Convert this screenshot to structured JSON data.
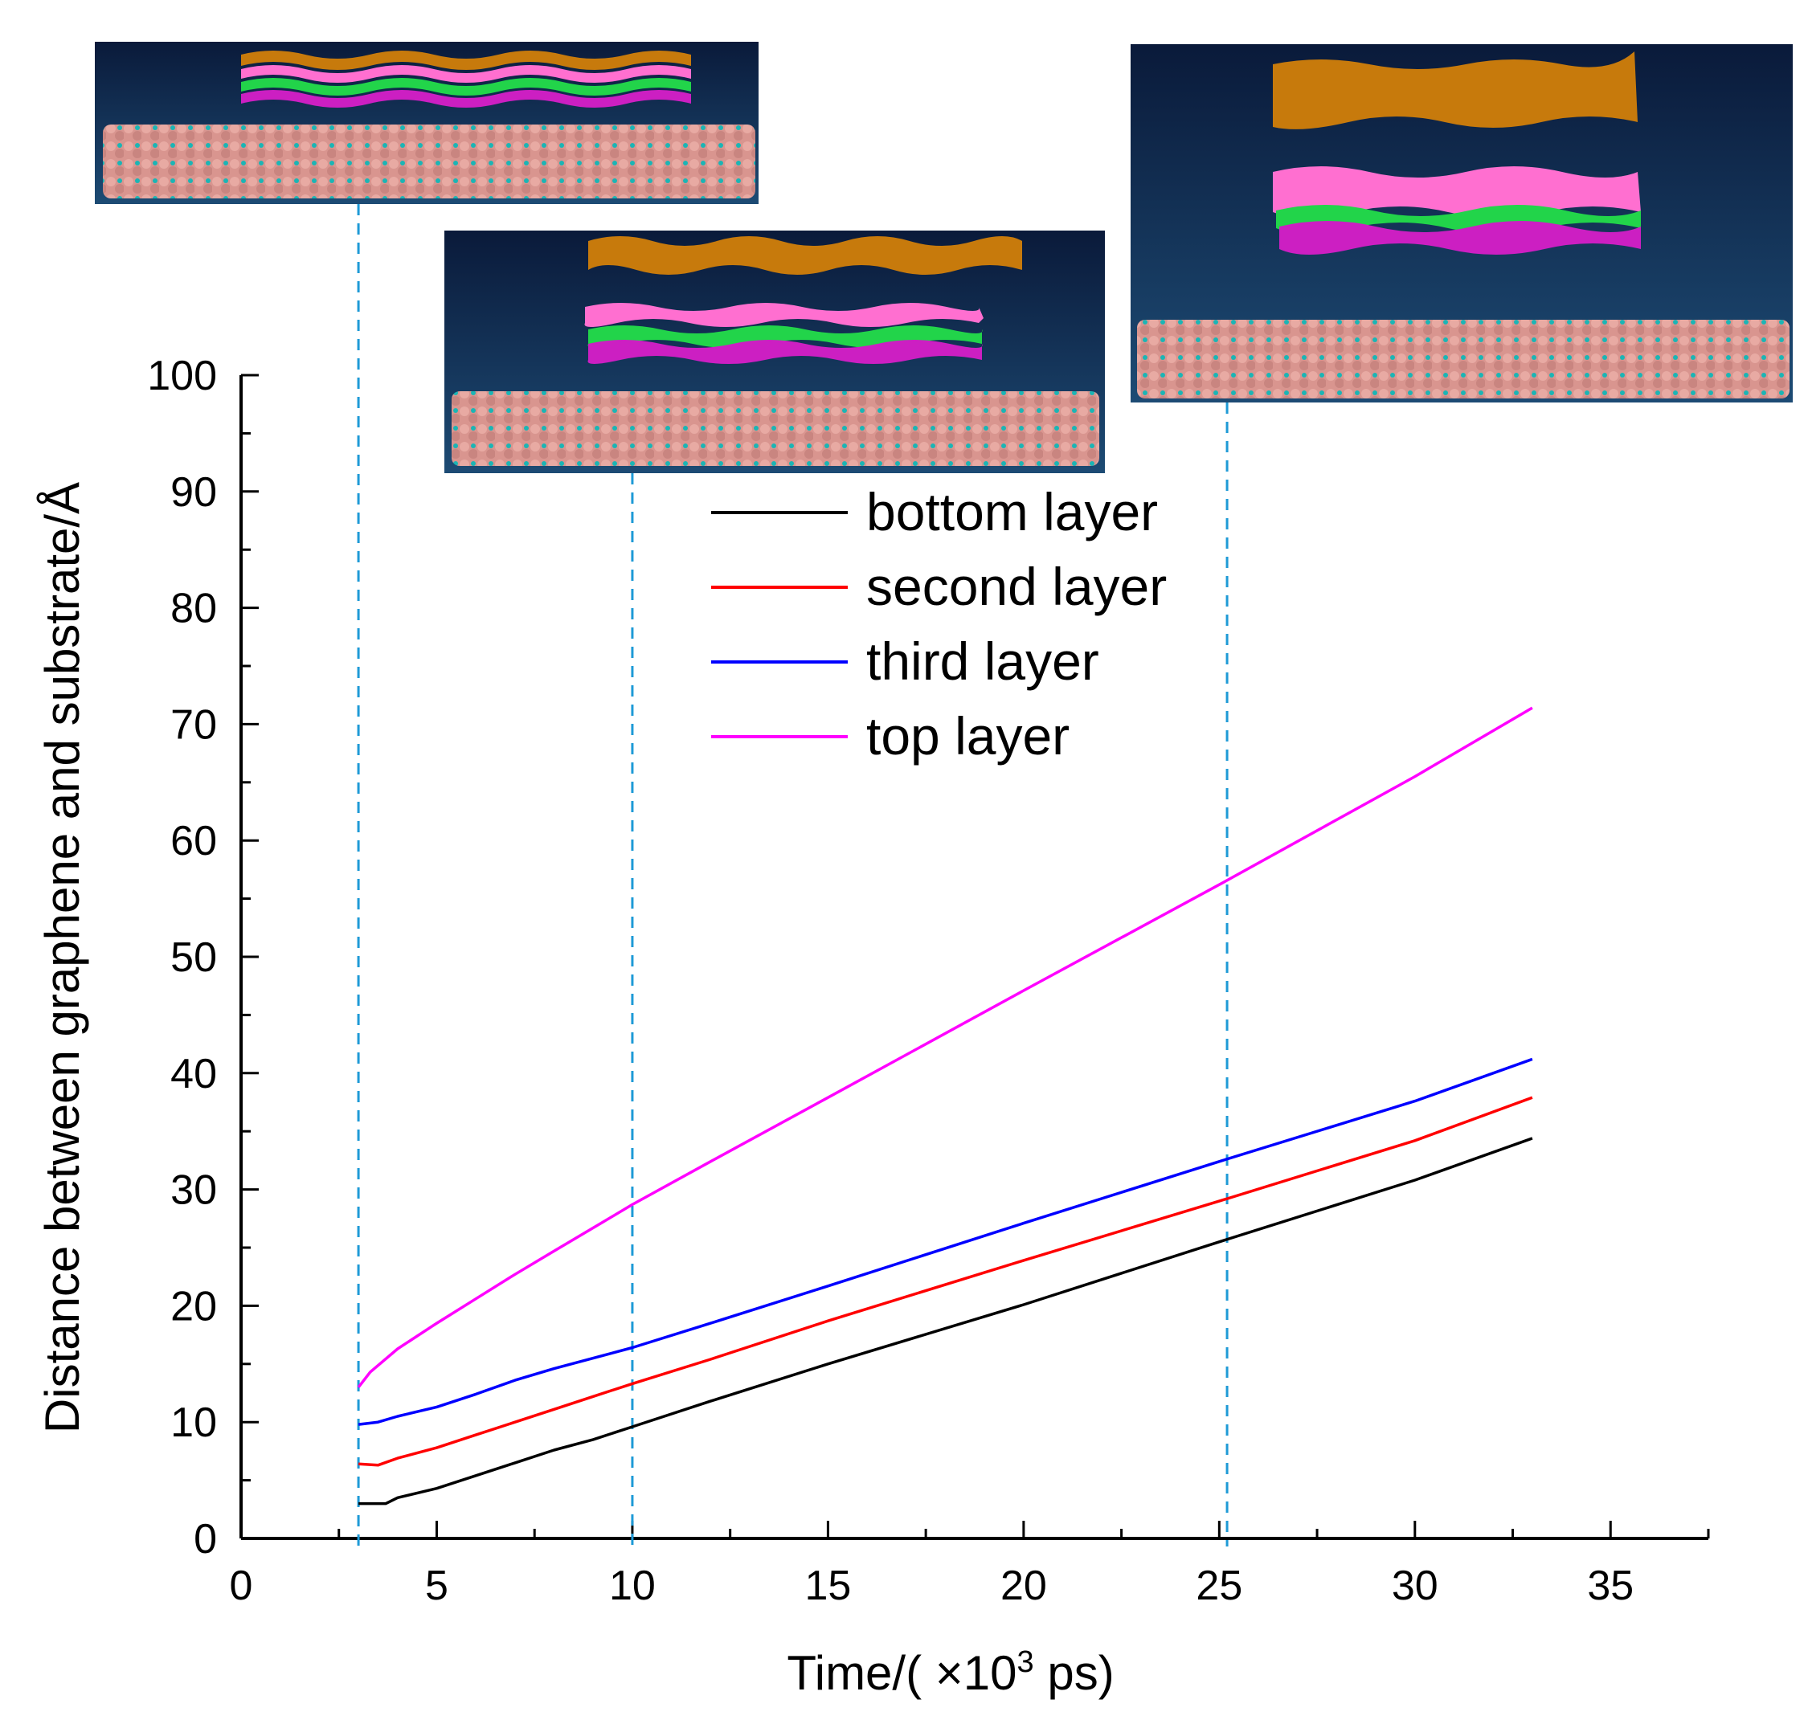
{
  "chart_data": {
    "type": "line",
    "xlabel": "Time/( ×10",
    "xlabel_sup": "3",
    "xlabel_tail": " ps)",
    "ylabel": "Distance between graphene and substrate/Å",
    "xlim": [
      0,
      37.5
    ],
    "ylim": [
      0,
      100
    ],
    "xticks": [
      0,
      5,
      10,
      15,
      20,
      25,
      30,
      35
    ],
    "yticks": [
      0,
      10,
      20,
      30,
      40,
      50,
      60,
      70,
      80,
      90,
      100
    ],
    "xtick_labels": [
      "0",
      "5",
      "10",
      "15",
      "20",
      "25",
      "30",
      "35"
    ],
    "ytick_labels": [
      "0",
      "10",
      "20",
      "30",
      "40",
      "50",
      "60",
      "70",
      "80",
      "90",
      "100"
    ],
    "markers_x": [
      3,
      10,
      25.2
    ],
    "legend_position": "upper-center",
    "series": [
      {
        "name": "bottom layer",
        "color": "#000000",
        "x": [
          3,
          3.7,
          4,
          5,
          6,
          7,
          8,
          9,
          10,
          12,
          15,
          20,
          25,
          30,
          33
        ],
        "y": [
          3,
          3,
          3.5,
          4.3,
          5.4,
          6.5,
          7.6,
          8.5,
          9.6,
          11.8,
          15,
          20.1,
          25.5,
          30.8,
          34.4
        ]
      },
      {
        "name": "second layer",
        "color": "#ff0000",
        "x": [
          3,
          3.5,
          4,
          5,
          6,
          7,
          8,
          9,
          10,
          12,
          15,
          20,
          25,
          30,
          33
        ],
        "y": [
          6.4,
          6.3,
          6.9,
          7.8,
          8.9,
          10,
          11.1,
          12.2,
          13.3,
          15.4,
          18.7,
          23.9,
          29,
          34.2,
          37.9
        ]
      },
      {
        "name": "third layer",
        "color": "#0000ff",
        "x": [
          3,
          3.5,
          4,
          5,
          6,
          7,
          8,
          9,
          10,
          12,
          15,
          20,
          25,
          30,
          33
        ],
        "y": [
          9.8,
          10,
          10.5,
          11.3,
          12.4,
          13.6,
          14.6,
          15.5,
          16.4,
          18.5,
          21.7,
          27.1,
          32.4,
          37.6,
          41.2
        ]
      },
      {
        "name": "top layer",
        "color": "#ff00ff",
        "x": [
          3,
          3.3,
          4,
          5,
          6,
          7,
          8,
          9,
          10,
          12,
          15,
          20,
          25,
          30,
          33
        ],
        "y": [
          13,
          14.3,
          16.3,
          18.5,
          20.6,
          22.7,
          24.7,
          26.7,
          28.7,
          32.4,
          37.9,
          47.1,
          56.2,
          65.5,
          71.4
        ]
      }
    ]
  },
  "colors": {
    "marker_line": "#1e9ad6",
    "inset_bg_top": "#0a1a3a",
    "inset_bg_bottom": "#1d4b74",
    "substrate": "#d9958f",
    "substrate_atom": "#1bb5b5",
    "layer_orange": "#c77a0c",
    "layer_pink": "#ff6fd0",
    "layer_green": "#22d44a",
    "layer_purple": "#cc1fc2"
  },
  "insets": [
    {
      "name": "inset-snapshot-early"
    },
    {
      "name": "inset-snapshot-mid"
    },
    {
      "name": "inset-snapshot-late"
    }
  ]
}
